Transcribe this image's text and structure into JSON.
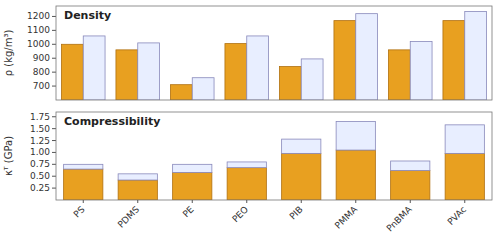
{
  "chart_data": [
    {
      "type": "bar",
      "title": "Density",
      "ylabel": "ρ (kg/m³)",
      "series": [
        {
          "color": "#E8A020",
          "edge_color": "#B07010",
          "values": [
            1000,
            960,
            710,
            1005,
            840,
            1170,
            960,
            1170
          ]
        },
        {
          "color": "#E8EEFF",
          "edge_color": "#8888BB",
          "values": [
            1060,
            1010,
            760,
            1060,
            895,
            1220,
            1020,
            1235
          ]
        }
      ],
      "ylim": [
        600,
        1275
      ],
      "yticks": [
        700,
        800,
        900,
        1000,
        1100,
        1200
      ],
      "grid": false,
      "tick_labels": "y"
    },
    {
      "type": "bar",
      "title": "Compressibility",
      "ylabel": "κᵀ (GPa)",
      "categories": [
        "PS",
        "PDMS",
        "PE",
        "PEO",
        "PIB",
        "PMMA",
        "PnBMA",
        "PVAc"
      ],
      "stacked": true,
      "series": [
        {
          "color": "#E8A020",
          "edge_color": "#B07010",
          "values": [
            0.65,
            0.42,
            0.58,
            0.68,
            0.98,
            1.05,
            0.62,
            0.98
          ]
        },
        {
          "color": "#E8EEFF",
          "edge_color": "#8888BB",
          "values": [
            0.1,
            0.13,
            0.17,
            0.12,
            0.3,
            0.6,
            0.2,
            0.6
          ]
        }
      ],
      "ylim": [
        0.0,
        1.85
      ],
      "yticks": [
        0.25,
        {
          "value": 0.5,
          "label": "0.50"
        },
        0.75,
        {
          "value": 1.0,
          "label": "1.00"
        },
        1.25,
        {
          "value": 1.5,
          "label": "1.50"
        },
        1.75
      ],
      "grid": false
    }
  ]
}
